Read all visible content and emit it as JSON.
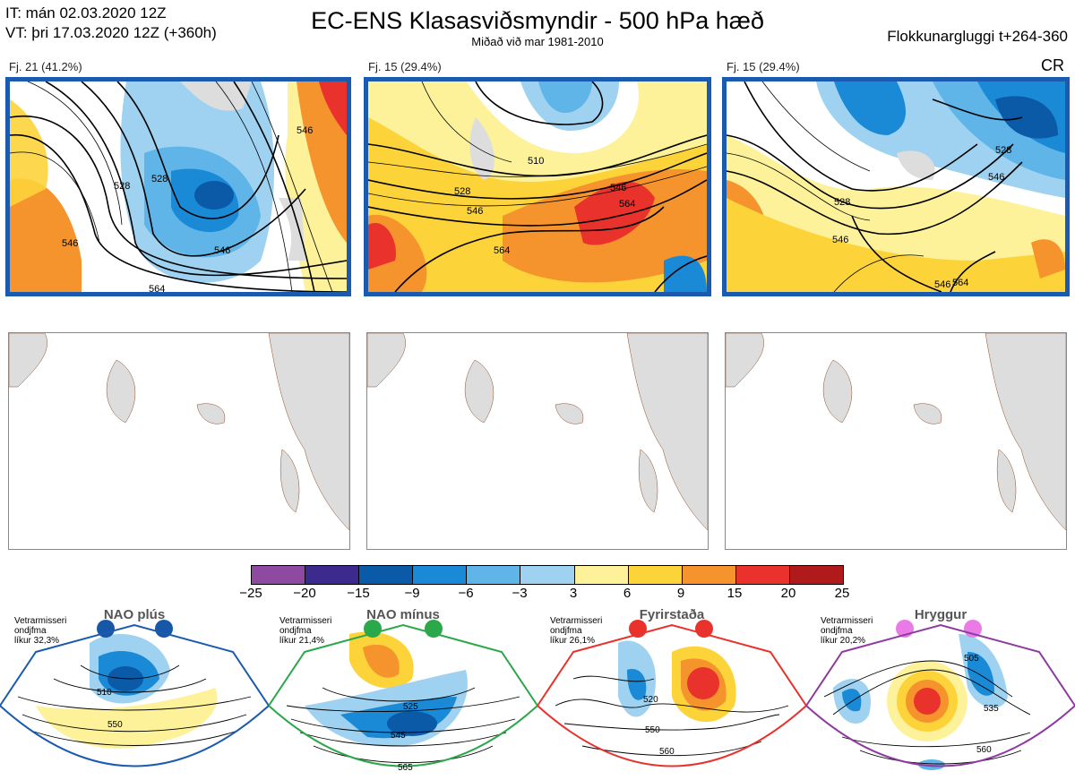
{
  "header": {
    "it_line": "IT: mán 02.03.2020 12Z",
    "vt_line": "VT: þri 17.03.2020 12Z  (+360h)",
    "title": "EC-ENS Klasasviðsmyndir - 500 hPa hæð",
    "subtitle": "Miðað við mar 1981-2010",
    "window": "Flokkunargluggi t+264-360",
    "code": "CR"
  },
  "panels": [
    {
      "label": "Fj. 21 (41.2%)",
      "contours": [
        "546",
        "528",
        "528",
        "546",
        "546",
        "564"
      ]
    },
    {
      "label": "Fj. 15 (29.4%)",
      "contours": [
        "510",
        "528",
        "546",
        "564",
        "546",
        "564"
      ]
    },
    {
      "label": "Fj. 15 (29.4%)",
      "contours": [
        "528",
        "546",
        "528",
        "546",
        "546",
        "564"
      ]
    }
  ],
  "colorbar": {
    "ticks": [
      "−25",
      "−20",
      "−15",
      "−9",
      "−6",
      "−3",
      "3",
      "6",
      "9",
      "15",
      "20",
      "25"
    ],
    "colors": [
      "#8e4aa0",
      "#3c2a8f",
      "#0a5aa8",
      "#1b8ad6",
      "#5fb5e8",
      "#9ed2f0",
      "#ffffff",
      "#fdf29a",
      "#fdd33a",
      "#f5942d",
      "#e8322b",
      "#b11a1a"
    ]
  },
  "regimes": [
    {
      "name": "NAO plús",
      "meta1": "Vetrarmisseri",
      "meta2": "ondjfma",
      "meta3": "líkur 32,3%",
      "dot": "#1657a8",
      "border": "#1a5bb0",
      "contours": [
        "510",
        "550"
      ]
    },
    {
      "name": "NAO mínus",
      "meta1": "Vetrarmisseri",
      "meta2": "ondjfma",
      "meta3": "líkur 21,4%",
      "dot": "#2aa84a",
      "border": "#2aa84a",
      "contours": [
        "525",
        "545",
        "565"
      ]
    },
    {
      "name": "Fyrirstaða",
      "meta1": "Vetrarmisseri",
      "meta2": "ondjfma",
      "meta3": "líkur 26,1%",
      "dot": "#e8322b",
      "border": "#e8322b",
      "contours": [
        "520",
        "550",
        "560"
      ]
    },
    {
      "name": "Hryggur",
      "meta1": "Vetrarmisseri",
      "meta2": "ondjfma",
      "meta3": "líkur 20,2%",
      "dot": "#ea7be6",
      "border": "#8e3aa0",
      "contours": [
        "505",
        "535",
        "560"
      ]
    }
  ]
}
